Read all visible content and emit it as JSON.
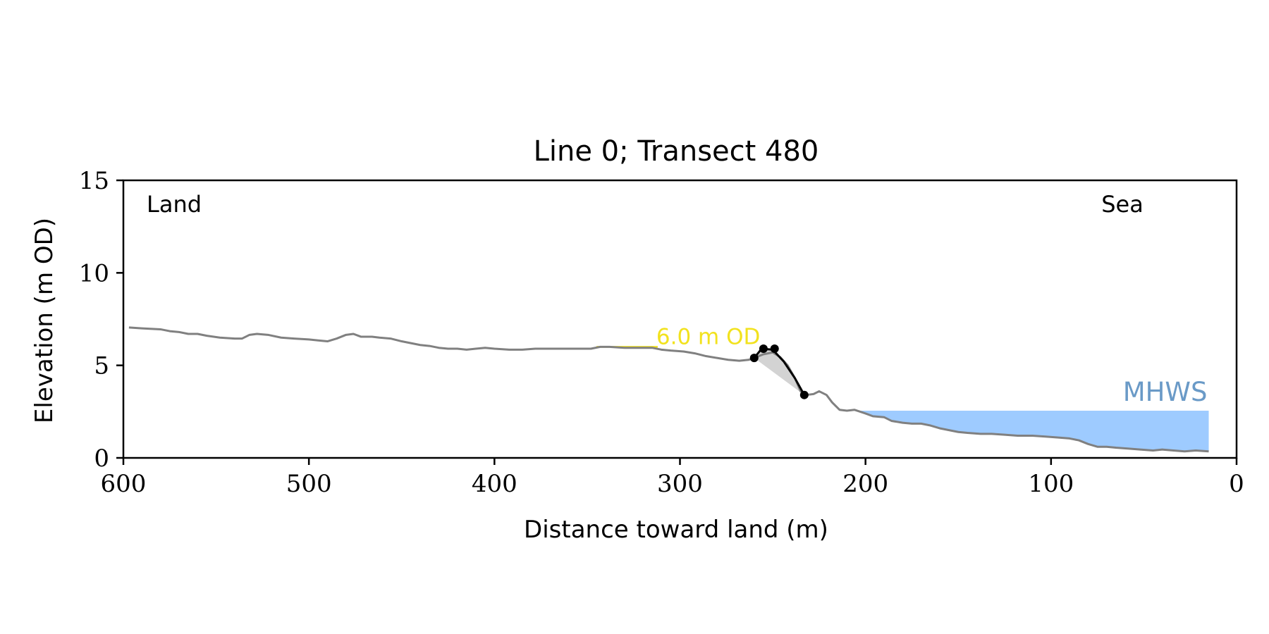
{
  "chart_data": {
    "type": "line",
    "title": "Line 0; Transect 480",
    "xlabel": "Distance toward land (m)",
    "ylabel": "Elevation (m OD)",
    "xlim": [
      600,
      0
    ],
    "ylim": [
      0,
      15
    ],
    "x_reversed": true,
    "xticks": [
      600,
      500,
      400,
      300,
      200,
      100,
      0
    ],
    "yticks": [
      0,
      5,
      10,
      15
    ],
    "corner_labels": {
      "left": "Land",
      "right": "Sea"
    },
    "colors": {
      "profile": "#808080",
      "cliff": "#000000",
      "cliff_fill": "#d3d3d3",
      "mhws_fill": "#9ecbff",
      "mhws_text": "#6a9ac7",
      "threshold": "#f2e21e"
    },
    "series": [
      {
        "values": [
          [
            597,
            7.05
          ],
          [
            590,
            7.0
          ],
          [
            580,
            6.95
          ],
          [
            575,
            6.85
          ],
          [
            570,
            6.8
          ],
          [
            565,
            6.7
          ],
          [
            560,
            6.7
          ],
          [
            555,
            6.6
          ],
          [
            548,
            6.5
          ],
          [
            540,
            6.45
          ],
          [
            536,
            6.45
          ],
          [
            532,
            6.65
          ],
          [
            528,
            6.7
          ],
          [
            522,
            6.65
          ],
          [
            515,
            6.5
          ],
          [
            508,
            6.45
          ],
          [
            500,
            6.4
          ],
          [
            495,
            6.35
          ],
          [
            490,
            6.3
          ],
          [
            485,
            6.45
          ],
          [
            480,
            6.65
          ],
          [
            476,
            6.7
          ],
          [
            472,
            6.55
          ],
          [
            466,
            6.55
          ],
          [
            462,
            6.5
          ],
          [
            456,
            6.45
          ],
          [
            450,
            6.3
          ],
          [
            445,
            6.2
          ],
          [
            440,
            6.1
          ],
          [
            435,
            6.05
          ],
          [
            430,
            5.95
          ],
          [
            425,
            5.9
          ],
          [
            420,
            5.9
          ],
          [
            415,
            5.85
          ],
          [
            410,
            5.9
          ],
          [
            405,
            5.95
          ],
          [
            400,
            5.9
          ],
          [
            392,
            5.85
          ],
          [
            385,
            5.85
          ],
          [
            378,
            5.9
          ],
          [
            370,
            5.9
          ],
          [
            362,
            5.9
          ],
          [
            355,
            5.9
          ],
          [
            348,
            5.9
          ],
          [
            343,
            6.0
          ],
          [
            338,
            6.0
          ],
          [
            330,
            5.95
          ],
          [
            322,
            5.95
          ],
          [
            315,
            5.95
          ],
          [
            310,
            5.85
          ],
          [
            305,
            5.8
          ],
          [
            298,
            5.75
          ],
          [
            292,
            5.65
          ],
          [
            286,
            5.5
          ],
          [
            280,
            5.4
          ],
          [
            274,
            5.3
          ],
          [
            268,
            5.25
          ],
          [
            263,
            5.3
          ],
          [
            260,
            5.4
          ],
          [
            255,
            5.6
          ],
          [
            250,
            5.7
          ],
          [
            246,
            5.45
          ],
          [
            242,
            5.0
          ],
          [
            238,
            4.3
          ],
          [
            235,
            3.6
          ],
          [
            232,
            3.4
          ],
          [
            228,
            3.45
          ],
          [
            225,
            3.6
          ],
          [
            221,
            3.4
          ],
          [
            218,
            3.0
          ],
          [
            214,
            2.6
          ],
          [
            210,
            2.55
          ],
          [
            206,
            2.6
          ],
          [
            200,
            2.4
          ],
          [
            196,
            2.25
          ],
          [
            190,
            2.2
          ],
          [
            186,
            2.0
          ],
          [
            180,
            1.9
          ],
          [
            175,
            1.85
          ],
          [
            170,
            1.85
          ],
          [
            165,
            1.75
          ],
          [
            160,
            1.6
          ],
          [
            155,
            1.5
          ],
          [
            150,
            1.4
          ],
          [
            145,
            1.35
          ],
          [
            138,
            1.3
          ],
          [
            132,
            1.3
          ],
          [
            125,
            1.25
          ],
          [
            118,
            1.2
          ],
          [
            110,
            1.2
          ],
          [
            103,
            1.15
          ],
          [
            96,
            1.1
          ],
          [
            90,
            1.05
          ],
          [
            85,
            0.95
          ],
          [
            80,
            0.75
          ],
          [
            75,
            0.6
          ],
          [
            70,
            0.6
          ],
          [
            65,
            0.55
          ],
          [
            58,
            0.5
          ],
          [
            52,
            0.45
          ],
          [
            45,
            0.4
          ],
          [
            40,
            0.45
          ],
          [
            34,
            0.4
          ],
          [
            28,
            0.35
          ],
          [
            22,
            0.4
          ],
          [
            15,
            0.35
          ]
        ]
      }
    ],
    "cliff": {
      "toe": [
        233,
        3.4
      ],
      "top": [
        260,
        5.4
      ],
      "line": [
        [
          260,
          5.4
        ],
        [
          256,
          5.9
        ],
        [
          250,
          5.85
        ],
        [
          244,
          5.2
        ],
        [
          238,
          4.3
        ],
        [
          233,
          3.4
        ]
      ],
      "points": [
        [
          260,
          5.4
        ],
        [
          255,
          5.9
        ],
        [
          249,
          5.9
        ],
        [
          233,
          3.4
        ]
      ]
    },
    "threshold": {
      "label": "6.0 m OD",
      "value": 6.0,
      "x_range": [
        345,
        312
      ]
    },
    "mhws": {
      "label": "MHWS",
      "level": 2.55,
      "x_range": [
        203,
        15
      ]
    }
  }
}
